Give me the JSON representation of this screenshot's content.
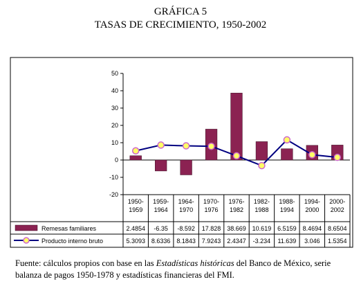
{
  "title_line1": "GRÁFICA 5",
  "title_line2": "TASAS DE CRECIMIENTO, 1950-2002",
  "source": {
    "prefix": "Fuente: cálculos propios con base en las ",
    "italic": "Estadísticas históricas",
    "suffix": " del Banco de México, serie balanza de pagos 1950-1978 y estadísticas financieras del FMI."
  },
  "chart_data": {
    "type": "bar",
    "categories": [
      [
        "1950-",
        "1959"
      ],
      [
        "1959-",
        "1964"
      ],
      [
        "1964-",
        "1970"
      ],
      [
        "1970-",
        "1976"
      ],
      [
        "1976-",
        "1982"
      ],
      [
        "1982-",
        "1988"
      ],
      [
        "1988-",
        "1994"
      ],
      [
        "1994-",
        "2000"
      ],
      [
        "2000-",
        "2002"
      ]
    ],
    "series": [
      {
        "name": "Remesas familiares",
        "type": "bar",
        "color": "#8b2252",
        "values": [
          2.4854,
          -6.35,
          -8.592,
          17.828,
          38.669,
          10.619,
          6.5159,
          8.4694,
          8.6504
        ],
        "labels": [
          "2.4854",
          "-6.35",
          "-8.592",
          "17.828",
          "38.669",
          "10.619",
          "6.5159",
          "8.4694",
          "8.6504"
        ]
      },
      {
        "name": "Producto interno bruto",
        "type": "line",
        "color": "#000080",
        "marker_color": "#ffff66",
        "values": [
          5.3093,
          8.6336,
          8.1843,
          7.9243,
          2.4347,
          -3.234,
          11.639,
          3.046,
          1.5354
        ],
        "labels": [
          "5.3093",
          "8.6336",
          "8.1843",
          "7.9243",
          "2.4347",
          "-3.234",
          "11.639",
          "3.046",
          "1.5354"
        ]
      }
    ],
    "ylim": [
      -20,
      50
    ],
    "yticks": [
      50,
      40,
      30,
      20,
      10,
      0,
      -10,
      -20
    ],
    "ytick_labels": [
      "50",
      "40",
      "30",
      "20",
      "10",
      "0",
      "-10",
      "-20"
    ],
    "grid": false,
    "legend": "table-below"
  }
}
